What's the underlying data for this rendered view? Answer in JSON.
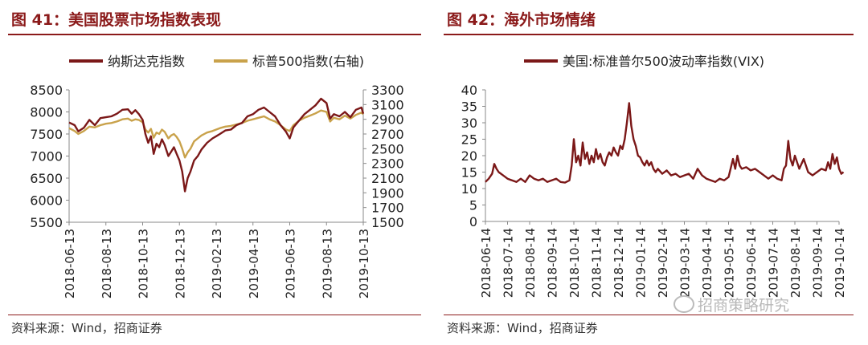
{
  "left": {
    "title": "图 41：美国股票市场指数表现",
    "source": "资料来源：Wind，招商证券",
    "chart_data": {
      "type": "line",
      "y_left_ticks": [
        5500,
        6000,
        6500,
        7000,
        7500,
        8000,
        8500
      ],
      "y_left_range": [
        5500,
        8500
      ],
      "y_right_ticks": [
        1500,
        1700,
        1900,
        2100,
        2300,
        2500,
        2700,
        2900,
        3100,
        3300
      ],
      "y_right_range": [
        1500,
        3300
      ],
      "x_range": [
        0,
        16
      ],
      "x_ticks": [
        {
          "x": 0,
          "label": "2018-06-13"
        },
        {
          "x": 2,
          "label": "2018-08-13"
        },
        {
          "x": 4,
          "label": "2018-10-13"
        },
        {
          "x": 6,
          "label": "2018-12-13"
        },
        {
          "x": 8,
          "label": "2019-02-13"
        },
        {
          "x": 10,
          "label": "2019-04-13"
        },
        {
          "x": 12,
          "label": "2019-06-13"
        },
        {
          "x": 14,
          "label": "2019-08-13"
        },
        {
          "x": 16,
          "label": "2019-10-13"
        }
      ],
      "series": [
        {
          "name": "纳斯达克指数",
          "axis": "left",
          "color": "#7b1818",
          "points": [
            [
              0,
              7760
            ],
            [
              0.3,
              7700
            ],
            [
              0.5,
              7560
            ],
            [
              0.8,
              7640
            ],
            [
              1.1,
              7820
            ],
            [
              1.4,
              7700
            ],
            [
              1.7,
              7860
            ],
            [
              2,
              7880
            ],
            [
              2.3,
              7900
            ],
            [
              2.6,
              7960
            ],
            [
              2.9,
              8050
            ],
            [
              3.2,
              8060
            ],
            [
              3.4,
              7960
            ],
            [
              3.6,
              8040
            ],
            [
              3.8,
              7950
            ],
            [
              4,
              7820
            ],
            [
              4.15,
              7500
            ],
            [
              4.3,
              7300
            ],
            [
              4.45,
              7450
            ],
            [
              4.6,
              7050
            ],
            [
              4.75,
              7280
            ],
            [
              4.9,
              7200
            ],
            [
              5.05,
              7380
            ],
            [
              5.2,
              7250
            ],
            [
              5.4,
              7000
            ],
            [
              5.55,
              7100
            ],
            [
              5.7,
              7200
            ],
            [
              5.85,
              7050
            ],
            [
              6,
              6900
            ],
            [
              6.15,
              6650
            ],
            [
              6.3,
              6200
            ],
            [
              6.45,
              6500
            ],
            [
              6.6,
              6650
            ],
            [
              6.8,
              6900
            ],
            [
              7,
              7000
            ],
            [
              7.2,
              7150
            ],
            [
              7.5,
              7300
            ],
            [
              7.8,
              7400
            ],
            [
              8,
              7450
            ],
            [
              8.2,
              7500
            ],
            [
              8.5,
              7580
            ],
            [
              8.8,
              7600
            ],
            [
              9.1,
              7700
            ],
            [
              9.4,
              7750
            ],
            [
              9.7,
              7900
            ],
            [
              10,
              7950
            ],
            [
              10.3,
              8050
            ],
            [
              10.6,
              8100
            ],
            [
              10.9,
              8000
            ],
            [
              11.2,
              7900
            ],
            [
              11.5,
              7700
            ],
            [
              11.8,
              7550
            ],
            [
              12,
              7400
            ],
            [
              12.2,
              7650
            ],
            [
              12.5,
              7800
            ],
            [
              12.8,
              7950
            ],
            [
              13.1,
              8050
            ],
            [
              13.4,
              8150
            ],
            [
              13.7,
              8300
            ],
            [
              14,
              8200
            ],
            [
              14.2,
              7850
            ],
            [
              14.4,
              7950
            ],
            [
              14.7,
              7900
            ],
            [
              15,
              8000
            ],
            [
              15.3,
              7880
            ],
            [
              15.6,
              8050
            ],
            [
              15.9,
              8100
            ],
            [
              16,
              7960
            ]
          ]
        },
        {
          "name": "标普500指数(右轴)",
          "axis": "right",
          "color": "#c9a24b",
          "points": [
            [
              0,
              2780
            ],
            [
              0.3,
              2740
            ],
            [
              0.5,
              2700
            ],
            [
              0.8,
              2740
            ],
            [
              1.1,
              2800
            ],
            [
              1.4,
              2790
            ],
            [
              1.7,
              2820
            ],
            [
              2,
              2840
            ],
            [
              2.3,
              2850
            ],
            [
              2.6,
              2870
            ],
            [
              2.9,
              2900
            ],
            [
              3.2,
              2910
            ],
            [
              3.4,
              2880
            ],
            [
              3.6,
              2900
            ],
            [
              3.8,
              2890
            ],
            [
              4,
              2860
            ],
            [
              4.15,
              2760
            ],
            [
              4.3,
              2720
            ],
            [
              4.45,
              2770
            ],
            [
              4.6,
              2650
            ],
            [
              4.75,
              2720
            ],
            [
              4.9,
              2700
            ],
            [
              5.05,
              2760
            ],
            [
              5.2,
              2730
            ],
            [
              5.4,
              2640
            ],
            [
              5.55,
              2680
            ],
            [
              5.7,
              2700
            ],
            [
              5.85,
              2660
            ],
            [
              6,
              2600
            ],
            [
              6.15,
              2500
            ],
            [
              6.3,
              2380
            ],
            [
              6.45,
              2450
            ],
            [
              6.6,
              2500
            ],
            [
              6.8,
              2600
            ],
            [
              7,
              2640
            ],
            [
              7.2,
              2680
            ],
            [
              7.5,
              2720
            ],
            [
              7.8,
              2740
            ],
            [
              8,
              2760
            ],
            [
              8.2,
              2780
            ],
            [
              8.5,
              2800
            ],
            [
              8.8,
              2810
            ],
            [
              9.1,
              2830
            ],
            [
              9.4,
              2850
            ],
            [
              9.7,
              2880
            ],
            [
              10,
              2900
            ],
            [
              10.3,
              2920
            ],
            [
              10.6,
              2940
            ],
            [
              10.9,
              2900
            ],
            [
              11.2,
              2870
            ],
            [
              11.5,
              2820
            ],
            [
              11.8,
              2760
            ],
            [
              12,
              2740
            ],
            [
              12.2,
              2820
            ],
            [
              12.5,
              2880
            ],
            [
              12.8,
              2920
            ],
            [
              13.1,
              2950
            ],
            [
              13.4,
              2980
            ],
            [
              13.7,
              3020
            ],
            [
              14,
              3000
            ],
            [
              14.2,
              2870
            ],
            [
              14.4,
              2920
            ],
            [
              14.7,
              2900
            ],
            [
              15,
              2950
            ],
            [
              15.3,
              2910
            ],
            [
              15.6,
              2960
            ],
            [
              15.9,
              2990
            ],
            [
              16,
              2970
            ]
          ]
        }
      ]
    }
  },
  "right": {
    "title": "图 42：海外市场情绪",
    "source": "资料来源：Wind，招商证券",
    "chart_data": {
      "type": "line",
      "y_ticks": [
        0,
        5,
        10,
        15,
        20,
        25,
        30,
        35,
        40
      ],
      "y_range": [
        0,
        40
      ],
      "x_range": [
        0,
        16
      ],
      "x_ticks": [
        {
          "x": 0,
          "label": "2018-06-14"
        },
        {
          "x": 1,
          "label": "2018-07-14"
        },
        {
          "x": 2,
          "label": "2018-08-14"
        },
        {
          "x": 3,
          "label": "2018-09-14"
        },
        {
          "x": 4,
          "label": "2018-10-14"
        },
        {
          "x": 5,
          "label": "2018-11-14"
        },
        {
          "x": 6,
          "label": "2018-12-14"
        },
        {
          "x": 7,
          "label": "2019-01-14"
        },
        {
          "x": 8,
          "label": "2019-02-14"
        },
        {
          "x": 9,
          "label": "2019-03-14"
        },
        {
          "x": 10,
          "label": "2019-04-14"
        },
        {
          "x": 11,
          "label": "2019-05-14"
        },
        {
          "x": 12,
          "label": "2019-06-14"
        },
        {
          "x": 13,
          "label": "2019-07-14"
        },
        {
          "x": 14,
          "label": "2019-08-14"
        },
        {
          "x": 15,
          "label": "2019-09-14"
        },
        {
          "x": 16,
          "label": "2019-10-14"
        }
      ],
      "series": [
        {
          "name": "美国:标准普尔500波动率指数(VIX)",
          "color": "#7b1818",
          "points": [
            [
              0,
              12
            ],
            [
              0.15,
              13
            ],
            [
              0.3,
              14.5
            ],
            [
              0.4,
              17.5
            ],
            [
              0.5,
              16
            ],
            [
              0.6,
              15
            ],
            [
              0.8,
              14
            ],
            [
              1,
              13
            ],
            [
              1.2,
              12.5
            ],
            [
              1.4,
              12
            ],
            [
              1.6,
              13
            ],
            [
              1.8,
              12
            ],
            [
              2,
              14
            ],
            [
              2.2,
              13
            ],
            [
              2.4,
              12.5
            ],
            [
              2.6,
              13
            ],
            [
              2.8,
              12
            ],
            [
              3,
              12.5
            ],
            [
              3.2,
              13
            ],
            [
              3.4,
              12
            ],
            [
              3.6,
              11.8
            ],
            [
              3.8,
              12.5
            ],
            [
              3.9,
              17
            ],
            [
              4,
              25
            ],
            [
              4.1,
              18
            ],
            [
              4.2,
              20
            ],
            [
              4.3,
              17
            ],
            [
              4.4,
              24
            ],
            [
              4.5,
              19
            ],
            [
              4.6,
              21
            ],
            [
              4.7,
              17.5
            ],
            [
              4.8,
              20
            ],
            [
              4.9,
              18
            ],
            [
              5,
              22
            ],
            [
              5.1,
              19
            ],
            [
              5.2,
              20.5
            ],
            [
              5.3,
              18
            ],
            [
              5.4,
              17
            ],
            [
              5.5,
              19.5
            ],
            [
              5.6,
              21
            ],
            [
              5.7,
              20
            ],
            [
              5.8,
              22.5
            ],
            [
              5.9,
              21
            ],
            [
              6,
              20
            ],
            [
              6.1,
              23
            ],
            [
              6.2,
              22
            ],
            [
              6.3,
              25
            ],
            [
              6.4,
              30
            ],
            [
              6.5,
              36
            ],
            [
              6.6,
              29
            ],
            [
              6.7,
              25
            ],
            [
              6.8,
              23
            ],
            [
              6.9,
              20
            ],
            [
              7,
              19.5
            ],
            [
              7.1,
              18
            ],
            [
              7.2,
              17
            ],
            [
              7.3,
              18.5
            ],
            [
              7.4,
              17
            ],
            [
              7.5,
              18
            ],
            [
              7.6,
              16
            ],
            [
              7.7,
              15
            ],
            [
              7.8,
              16
            ],
            [
              8,
              14.5
            ],
            [
              8.2,
              15.5
            ],
            [
              8.4,
              14
            ],
            [
              8.6,
              14.5
            ],
            [
              8.8,
              13.5
            ],
            [
              9,
              14
            ],
            [
              9.2,
              14.5
            ],
            [
              9.4,
              13
            ],
            [
              9.6,
              16
            ],
            [
              9.8,
              14
            ],
            [
              10,
              13
            ],
            [
              10.2,
              12.5
            ],
            [
              10.4,
              12
            ],
            [
              10.6,
              13
            ],
            [
              10.8,
              12.5
            ],
            [
              11,
              13.5
            ],
            [
              11.2,
              19
            ],
            [
              11.3,
              16
            ],
            [
              11.4,
              20
            ],
            [
              11.5,
              17
            ],
            [
              11.6,
              16
            ],
            [
              11.8,
              16.5
            ],
            [
              12,
              15.5
            ],
            [
              12.2,
              16
            ],
            [
              12.4,
              15
            ],
            [
              12.6,
              14
            ],
            [
              12.8,
              13
            ],
            [
              13,
              14
            ],
            [
              13.2,
              13
            ],
            [
              13.4,
              12.5
            ],
            [
              13.5,
              16
            ],
            [
              13.6,
              17
            ],
            [
              13.7,
              24.5
            ],
            [
              13.8,
              19
            ],
            [
              13.9,
              17
            ],
            [
              14,
              20
            ],
            [
              14.2,
              16
            ],
            [
              14.4,
              19
            ],
            [
              14.6,
              15
            ],
            [
              14.8,
              14
            ],
            [
              15,
              15
            ],
            [
              15.2,
              16
            ],
            [
              15.4,
              15.5
            ],
            [
              15.5,
              18
            ],
            [
              15.6,
              16
            ],
            [
              15.7,
              20.5
            ],
            [
              15.8,
              17.5
            ],
            [
              15.9,
              19.5
            ],
            [
              16,
              16
            ],
            [
              16.1,
              14.5
            ],
            [
              16.2,
              15
            ]
          ]
        }
      ]
    }
  },
  "watermark": "招商策略研究"
}
